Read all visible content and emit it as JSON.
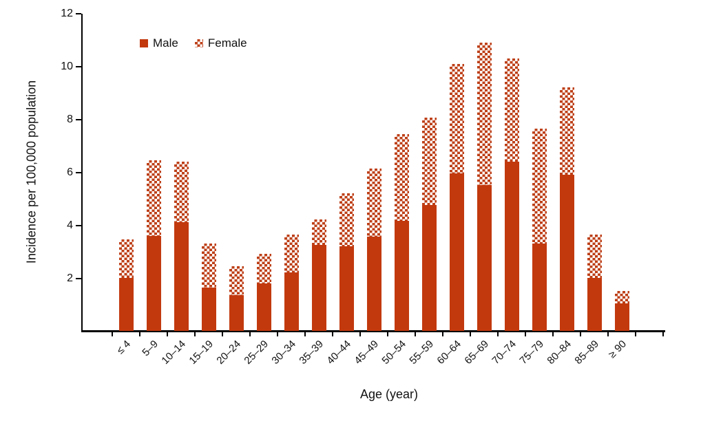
{
  "chart_data": {
    "type": "bar",
    "stacked": true,
    "title": "",
    "xlabel": "Age (year)",
    "ylabel": "Incidence per 100,000 population",
    "categories": [
      "≤ 4",
      "5–9",
      "10–14",
      "15–19",
      "20–24",
      "25–29",
      "30–34",
      "35–39",
      "40–44",
      "45–49",
      "50–54",
      "55–59",
      "60–64",
      "65–69",
      "70–74",
      "75–79",
      "80–84",
      "85–89",
      "≥ 90"
    ],
    "series": [
      {
        "name": "Male",
        "pattern": "solid",
        "values": [
          2.0,
          3.6,
          4.1,
          1.65,
          1.35,
          1.8,
          2.2,
          3.25,
          3.2,
          3.55,
          4.15,
          4.75,
          5.95,
          5.5,
          6.4,
          3.3,
          5.9,
          2.0,
          1.05
        ]
      },
      {
        "name": "Female",
        "pattern": "checker",
        "values": [
          1.45,
          2.85,
          2.3,
          1.65,
          1.1,
          1.1,
          1.45,
          0.95,
          2.0,
          2.6,
          3.3,
          3.3,
          4.15,
          5.4,
          3.9,
          4.35,
          3.3,
          1.65,
          0.45
        ]
      }
    ],
    "totals": [
      3.45,
      6.45,
      6.4,
      3.3,
      2.45,
      2.9,
      3.65,
      4.2,
      5.2,
      6.15,
      7.45,
      8.05,
      10.1,
      10.9,
      10.3,
      7.65,
      9.2,
      3.65,
      1.5
    ],
    "ylim": [
      0,
      12
    ],
    "yticks": [
      2,
      4,
      6,
      8,
      10,
      12
    ],
    "grid": false,
    "legend_position": "top-inside",
    "bar_color": "#c2390e",
    "checker_color": "#bd3f17"
  }
}
